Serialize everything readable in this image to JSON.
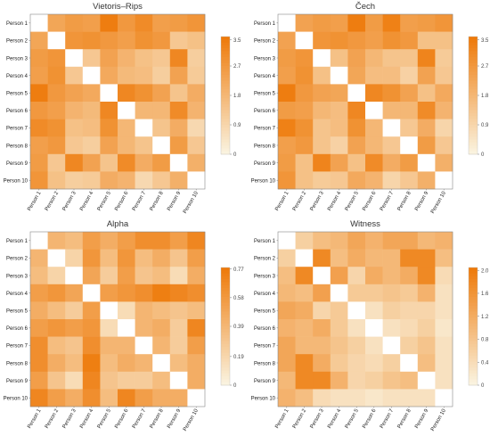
{
  "chart_data": [
    {
      "type": "heatmap",
      "title": "Vietoris–Rips",
      "rows": [
        "Person 1",
        "Person 2",
        "Person 3",
        "Person 4",
        "Person 5",
        "Person 6",
        "Person 7",
        "Person 8",
        "Person 9",
        "Person 10"
      ],
      "cols": [
        "Person 1",
        "Person 2",
        "Person 3",
        "Person 4",
        "Person 5",
        "Person 6",
        "Person 7",
        "Person 8",
        "Person 9",
        "Person 10"
      ],
      "scale": {
        "min": 0,
        "max": 3.6,
        "low_color": "#faf3df",
        "high_color": "#ee7a0a"
      },
      "colorbar_ticks": [
        "3.5",
        "2.7",
        "1.8",
        "0.9",
        "0"
      ],
      "colorbar_tick_values": [
        3.5,
        2.7,
        1.8,
        0.9,
        0
      ],
      "values": [
        [
          0.0,
          2.3,
          2.6,
          2.5,
          3.5,
          2.7,
          3.1,
          2.5,
          2.6,
          2.8
        ],
        [
          2.3,
          0.0,
          2.8,
          2.9,
          2.7,
          2.5,
          2.9,
          2.7,
          1.3,
          1.5
        ],
        [
          2.6,
          2.8,
          0.0,
          1.3,
          2.4,
          1.9,
          1.5,
          1.3,
          3.2,
          1.1
        ],
        [
          2.5,
          2.9,
          1.3,
          0.0,
          2.2,
          1.7,
          1.6,
          1.1,
          2.4,
          1.2
        ],
        [
          3.5,
          2.7,
          2.4,
          2.2,
          0.0,
          3.2,
          2.9,
          2.4,
          1.4,
          2.1
        ],
        [
          2.7,
          2.5,
          1.9,
          1.7,
          3.2,
          0.0,
          1.8,
          1.8,
          3.1,
          1.9
        ],
        [
          3.1,
          2.9,
          1.5,
          1.6,
          2.9,
          1.8,
          0.0,
          1.4,
          2.1,
          0.8
        ],
        [
          2.5,
          2.7,
          1.3,
          1.1,
          2.4,
          1.8,
          1.4,
          0.0,
          2.6,
          1.3
        ],
        [
          2.6,
          1.3,
          3.2,
          2.4,
          1.4,
          3.1,
          2.1,
          2.6,
          0.0,
          2.0
        ],
        [
          2.8,
          1.5,
          1.1,
          1.2,
          2.1,
          1.9,
          0.8,
          1.3,
          2.0,
          0.0
        ]
      ]
    },
    {
      "type": "heatmap",
      "title": "Čech",
      "rows": [
        "Person 1",
        "Person 2",
        "Person 3",
        "Person 4",
        "Person 5",
        "Person 6",
        "Person 7",
        "Person 8",
        "Person 9",
        "Person 10"
      ],
      "cols": [
        "Person 1",
        "Person 2",
        "Person 3",
        "Person 4",
        "Person 5",
        "Person 6",
        "Person 7",
        "Person 8",
        "Person 9",
        "Person 10"
      ],
      "scale": {
        "min": 0,
        "max": 3.6,
        "low_color": "#faf3df",
        "high_color": "#ee7a0a"
      },
      "colorbar_ticks": [
        "3.5",
        "2.7",
        "1.8",
        "0.9",
        "0"
      ],
      "colorbar_tick_values": [
        3.5,
        2.7,
        1.8,
        0.9,
        0
      ],
      "values": [
        [
          0.0,
          2.4,
          2.6,
          2.5,
          3.5,
          2.6,
          3.4,
          2.5,
          2.6,
          2.8
        ],
        [
          2.4,
          0.0,
          2.8,
          2.9,
          2.7,
          2.5,
          2.9,
          2.7,
          1.5,
          1.5
        ],
        [
          2.6,
          2.8,
          0.0,
          1.5,
          2.4,
          1.8,
          1.4,
          1.4,
          3.3,
          1.2
        ],
        [
          2.5,
          2.9,
          1.5,
          0.0,
          2.3,
          1.6,
          1.6,
          1.0,
          2.4,
          1.3
        ],
        [
          3.5,
          2.7,
          2.4,
          2.3,
          0.0,
          3.2,
          2.9,
          2.4,
          1.5,
          2.2
        ],
        [
          2.6,
          2.5,
          1.8,
          1.6,
          3.2,
          0.0,
          1.8,
          1.8,
          3.1,
          1.9
        ],
        [
          3.4,
          2.9,
          1.4,
          1.6,
          2.9,
          1.8,
          0.0,
          1.3,
          2.1,
          0.9
        ],
        [
          2.5,
          2.7,
          1.4,
          1.0,
          2.4,
          1.8,
          1.3,
          0.0,
          2.6,
          1.3
        ],
        [
          2.6,
          1.5,
          3.3,
          2.4,
          1.5,
          3.1,
          2.1,
          2.6,
          0.0,
          2.0
        ],
        [
          2.8,
          1.5,
          1.2,
          1.3,
          2.2,
          1.9,
          0.9,
          1.3,
          2.0,
          0.0
        ]
      ]
    },
    {
      "type": "heatmap",
      "title": "Alpha",
      "rows": [
        "Person 1",
        "Person 2",
        "Person 3",
        "Person 4",
        "Person 5",
        "Person 6",
        "Person 7",
        "Person 8",
        "Person 9",
        "Person 10"
      ],
      "cols": [
        "Person 1",
        "Person 2",
        "Person 3",
        "Person 4",
        "Person 5",
        "Person 6",
        "Person 7",
        "Person 8",
        "Person 9",
        "Person 10"
      ],
      "scale": {
        "min": 0,
        "max": 0.78,
        "low_color": "#faf3df",
        "high_color": "#ee7a0a"
      },
      "colorbar_ticks": [
        "0.77",
        "0.58",
        "0.39",
        "0.19",
        "0"
      ],
      "colorbar_tick_values": [
        0.77,
        0.58,
        0.39,
        0.19,
        0
      ],
      "values": [
        [
          0.0,
          0.4,
          0.35,
          0.55,
          0.45,
          0.55,
          0.65,
          0.65,
          0.55,
          0.7
        ],
        [
          0.4,
          0.0,
          0.2,
          0.6,
          0.35,
          0.6,
          0.35,
          0.45,
          0.3,
          0.55
        ],
        [
          0.35,
          0.2,
          0.0,
          0.5,
          0.25,
          0.55,
          0.3,
          0.35,
          0.15,
          0.45
        ],
        [
          0.55,
          0.6,
          0.5,
          0.0,
          0.55,
          0.6,
          0.65,
          0.75,
          0.7,
          0.65
        ],
        [
          0.45,
          0.35,
          0.25,
          0.55,
          0.0,
          0.15,
          0.4,
          0.35,
          0.3,
          0.35
        ],
        [
          0.55,
          0.6,
          0.55,
          0.6,
          0.15,
          0.0,
          0.4,
          0.45,
          0.25,
          0.7
        ],
        [
          0.65,
          0.35,
          0.3,
          0.65,
          0.4,
          0.4,
          0.0,
          0.4,
          0.25,
          0.55
        ],
        [
          0.65,
          0.45,
          0.35,
          0.75,
          0.35,
          0.45,
          0.4,
          0.0,
          0.35,
          0.45
        ],
        [
          0.55,
          0.3,
          0.15,
          0.7,
          0.3,
          0.25,
          0.25,
          0.35,
          0.0,
          0.45
        ],
        [
          0.7,
          0.55,
          0.45,
          0.65,
          0.35,
          0.7,
          0.55,
          0.45,
          0.45,
          0.0
        ]
      ]
    },
    {
      "type": "heatmap",
      "title": "Witness",
      "rows": [
        "Person 1",
        "Person 2",
        "Person 3",
        "Person 4",
        "Person 5",
        "Person 6",
        "Person 7",
        "Person 8",
        "Person 9",
        "Person 10"
      ],
      "cols": [
        "Person 1",
        "Person 2",
        "Person 3",
        "Person 4",
        "Person 5",
        "Person 6",
        "Person 7",
        "Person 8",
        "Person 9",
        "Person 10"
      ],
      "scale": {
        "min": 0,
        "max": 2.05,
        "low_color": "#faf3df",
        "high_color": "#ee7a0a"
      },
      "colorbar_ticks": [
        "2.0",
        "1.6",
        "1.2",
        "0.8",
        "0.4",
        "0"
      ],
      "colorbar_tick_values": [
        2.0,
        1.6,
        1.2,
        0.8,
        0.4,
        0
      ],
      "values": [
        [
          0.0,
          0.6,
          0.9,
          1.0,
          1.3,
          1.1,
          1.3,
          1.3,
          1.0,
          1.1
        ],
        [
          0.6,
          0.0,
          1.8,
          0.9,
          1.2,
          1.0,
          1.0,
          1.8,
          1.8,
          0.9
        ],
        [
          0.9,
          1.8,
          0.0,
          1.4,
          0.5,
          1.2,
          1.0,
          1.2,
          1.8,
          0.4
        ],
        [
          1.0,
          0.9,
          1.4,
          0.0,
          0.7,
          0.7,
          0.8,
          0.7,
          1.1,
          0.3
        ],
        [
          1.3,
          1.2,
          0.5,
          0.7,
          0.0,
          0.3,
          0.6,
          0.5,
          0.5,
          0.3
        ],
        [
          1.1,
          1.0,
          1.2,
          0.7,
          0.3,
          0.0,
          0.3,
          0.4,
          0.6,
          0.2
        ],
        [
          1.3,
          1.0,
          1.0,
          0.8,
          0.6,
          0.3,
          0.0,
          0.6,
          0.8,
          0.3
        ],
        [
          1.3,
          1.8,
          1.2,
          0.7,
          0.5,
          0.4,
          0.6,
          0.0,
          0.9,
          0.3
        ],
        [
          1.0,
          1.8,
          1.8,
          1.1,
          0.5,
          0.6,
          0.8,
          0.9,
          0.0,
          0.3
        ],
        [
          1.1,
          0.9,
          0.4,
          0.3,
          0.3,
          0.2,
          0.3,
          0.3,
          0.3,
          0.0
        ]
      ]
    }
  ]
}
